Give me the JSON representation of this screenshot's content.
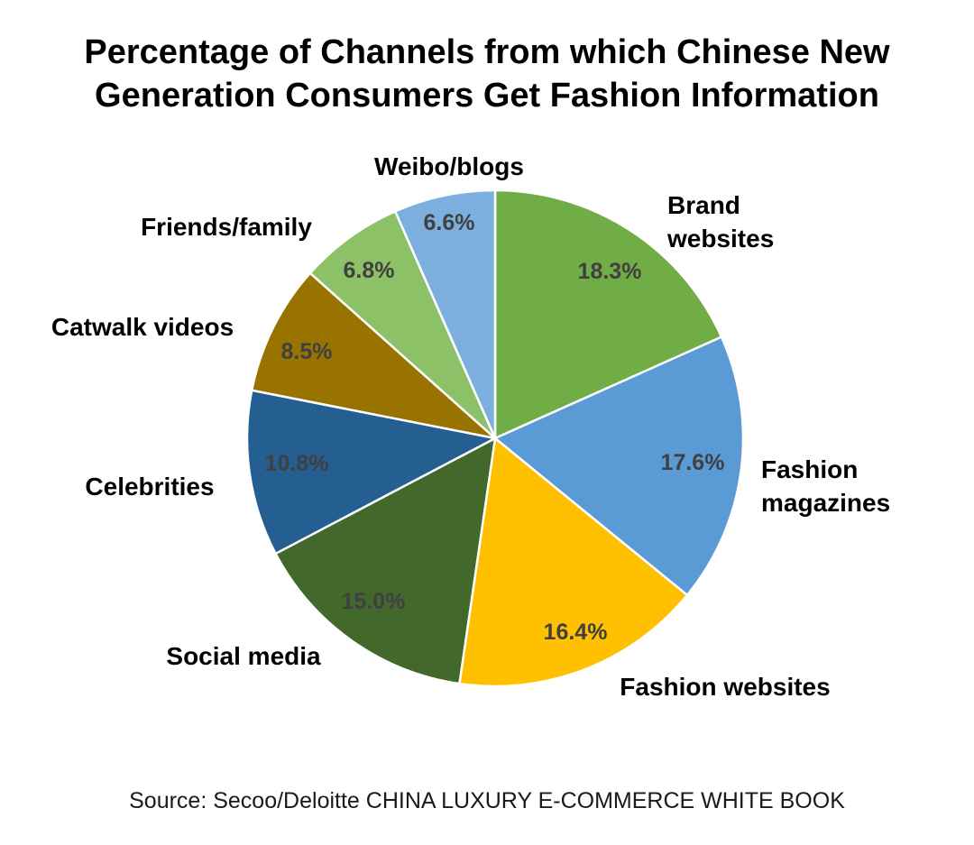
{
  "title_line1": "Percentage of Channels from which Chinese New",
  "title_line2": "Generation Consumers Get Fashion Information",
  "source": "Source: Secoo/Deloitte CHINA LUXURY E-COMMERCE WHITE BOOK",
  "chart_data": {
    "type": "pie",
    "title": "Percentage of Channels from which Chinese New Generation Consumers Get Fashion Information",
    "unit": "%",
    "slices": [
      {
        "label": "Brand websites",
        "label_lines": [
          "Brand",
          "websites"
        ],
        "value": 18.3,
        "display": "18.3%",
        "color": "#70AD47"
      },
      {
        "label": "Fashion magazines",
        "label_lines": [
          "Fashion",
          "magazines"
        ],
        "value": 17.6,
        "display": "17.6%",
        "color": "#5B9BD5"
      },
      {
        "label": "Fashion websites",
        "label_lines": [
          "Fashion websites"
        ],
        "value": 16.4,
        "display": "16.4%",
        "color": "#FFC000"
      },
      {
        "label": "Social media",
        "label_lines": [
          "Social media"
        ],
        "value": 15.0,
        "display": "15.0%",
        "color": "#43682B"
      },
      {
        "label": "Celebrities",
        "label_lines": [
          "Celebrities"
        ],
        "value": 10.8,
        "display": "10.8%",
        "color": "#255E91"
      },
      {
        "label": "Catwalk videos",
        "label_lines": [
          "Catwalk videos"
        ],
        "value": 8.5,
        "display": "8.5%",
        "color": "#997300"
      },
      {
        "label": "Friends/family",
        "label_lines": [
          "Friends/family"
        ],
        "value": 6.8,
        "display": "6.8%",
        "color": "#8CC168"
      },
      {
        "label": "Weibo/blogs",
        "label_lines": [
          "Weibo/blogs"
        ],
        "value": 6.6,
        "display": "6.6%",
        "color": "#7CAFDD"
      }
    ],
    "value_label_color": "#404040",
    "start_angle": "12 o'clock",
    "direction": "clockwise",
    "legend": "none"
  }
}
